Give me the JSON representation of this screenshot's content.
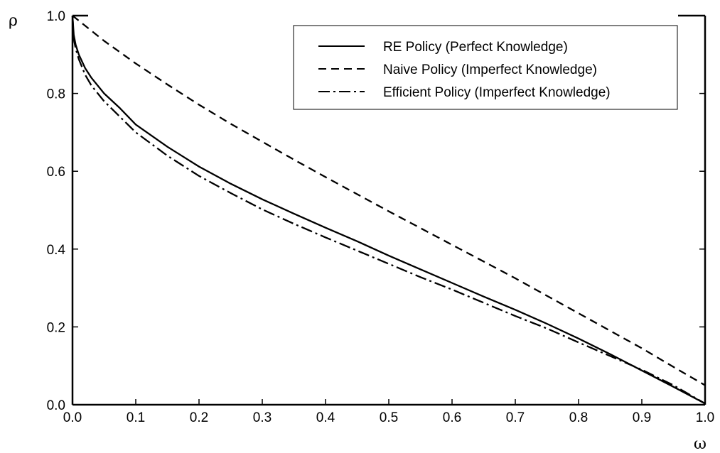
{
  "chart_data": {
    "type": "line",
    "title": "",
    "xlabel": "ω",
    "ylabel": "ρ",
    "xlim": [
      0,
      1
    ],
    "ylim": [
      0,
      1
    ],
    "x_ticks": [
      "0.0",
      "0.1",
      "0.2",
      "0.3",
      "0.4",
      "0.5",
      "0.6",
      "0.7",
      "0.8",
      "0.9",
      "1.0"
    ],
    "y_ticks": [
      "0.0",
      "0.2",
      "0.4",
      "0.6",
      "0.8",
      "1.0"
    ],
    "grid": false,
    "legend_position": "top-right",
    "series": [
      {
        "name": "RE Policy (Perfect Knowledge)",
        "style": "solid",
        "x": [
          0,
          0.002,
          0.005,
          0.01,
          0.02,
          0.03,
          0.05,
          0.075,
          0.1,
          0.15,
          0.2,
          0.25,
          0.3,
          0.35,
          0.4,
          0.45,
          0.5,
          0.55,
          0.6,
          0.65,
          0.7,
          0.75,
          0.8,
          0.85,
          0.9,
          0.95,
          1.0
        ],
        "y": [
          1.0,
          0.95,
          0.925,
          0.9,
          0.865,
          0.84,
          0.8,
          0.762,
          0.72,
          0.663,
          0.612,
          0.568,
          0.528,
          0.491,
          0.455,
          0.42,
          0.383,
          0.348,
          0.313,
          0.278,
          0.244,
          0.208,
          0.17,
          0.13,
          0.088,
          0.046,
          0.003
        ]
      },
      {
        "name": "Naive Policy (Imperfect Knowledge)",
        "style": "dashed",
        "x": [
          0,
          0.05,
          0.1,
          0.15,
          0.2,
          0.25,
          0.3,
          0.35,
          0.4,
          0.45,
          0.5,
          0.55,
          0.6,
          0.65,
          0.7,
          0.75,
          0.8,
          0.85,
          0.9,
          0.95,
          1.0
        ],
        "y": [
          1.0,
          0.935,
          0.877,
          0.823,
          0.771,
          0.722,
          0.676,
          0.63,
          0.585,
          0.541,
          0.497,
          0.454,
          0.411,
          0.368,
          0.325,
          0.28,
          0.235,
          0.19,
          0.145,
          0.097,
          0.05
        ]
      },
      {
        "name": "Efficient Policy (Imperfect Knowledge)",
        "style": "dash-dot",
        "x": [
          0,
          0.002,
          0.005,
          0.01,
          0.02,
          0.03,
          0.05,
          0.075,
          0.1,
          0.15,
          0.2,
          0.25,
          0.3,
          0.35,
          0.4,
          0.45,
          0.5,
          0.55,
          0.6,
          0.65,
          0.7,
          0.75,
          0.8,
          0.85,
          0.9,
          0.95,
          1.0
        ],
        "y": [
          1.0,
          0.94,
          0.915,
          0.888,
          0.848,
          0.82,
          0.78,
          0.74,
          0.7,
          0.64,
          0.588,
          0.544,
          0.502,
          0.465,
          0.43,
          0.396,
          0.362,
          0.328,
          0.296,
          0.262,
          0.228,
          0.196,
          0.16,
          0.125,
          0.09,
          0.05,
          0.003
        ]
      }
    ]
  }
}
